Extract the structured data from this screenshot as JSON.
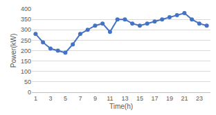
{
  "chart_data": {
    "type": "line",
    "x_label": "Time(h)",
    "y_label": "Power(kW)",
    "x": [
      1,
      2,
      3,
      4,
      5,
      6,
      7,
      8,
      9,
      10,
      11,
      12,
      13,
      14,
      15,
      16,
      17,
      18,
      19,
      20,
      21,
      22,
      23,
      24
    ],
    "values": [
      280,
      240,
      210,
      200,
      190,
      230,
      280,
      300,
      320,
      330,
      290,
      350,
      350,
      330,
      320,
      330,
      340,
      350,
      360,
      370,
      380,
      350,
      330,
      320
    ],
    "color": "#4472c4",
    "marker": "circle",
    "xlim": [
      0.5,
      24.5
    ],
    "xticks": [
      1,
      3,
      5,
      7,
      9,
      11,
      13,
      15,
      17,
      19,
      21,
      23
    ],
    "ylim": [
      0,
      400
    ],
    "yticks": [
      0,
      50,
      100,
      150,
      200,
      250,
      300,
      350,
      400
    ],
    "grid": true
  }
}
